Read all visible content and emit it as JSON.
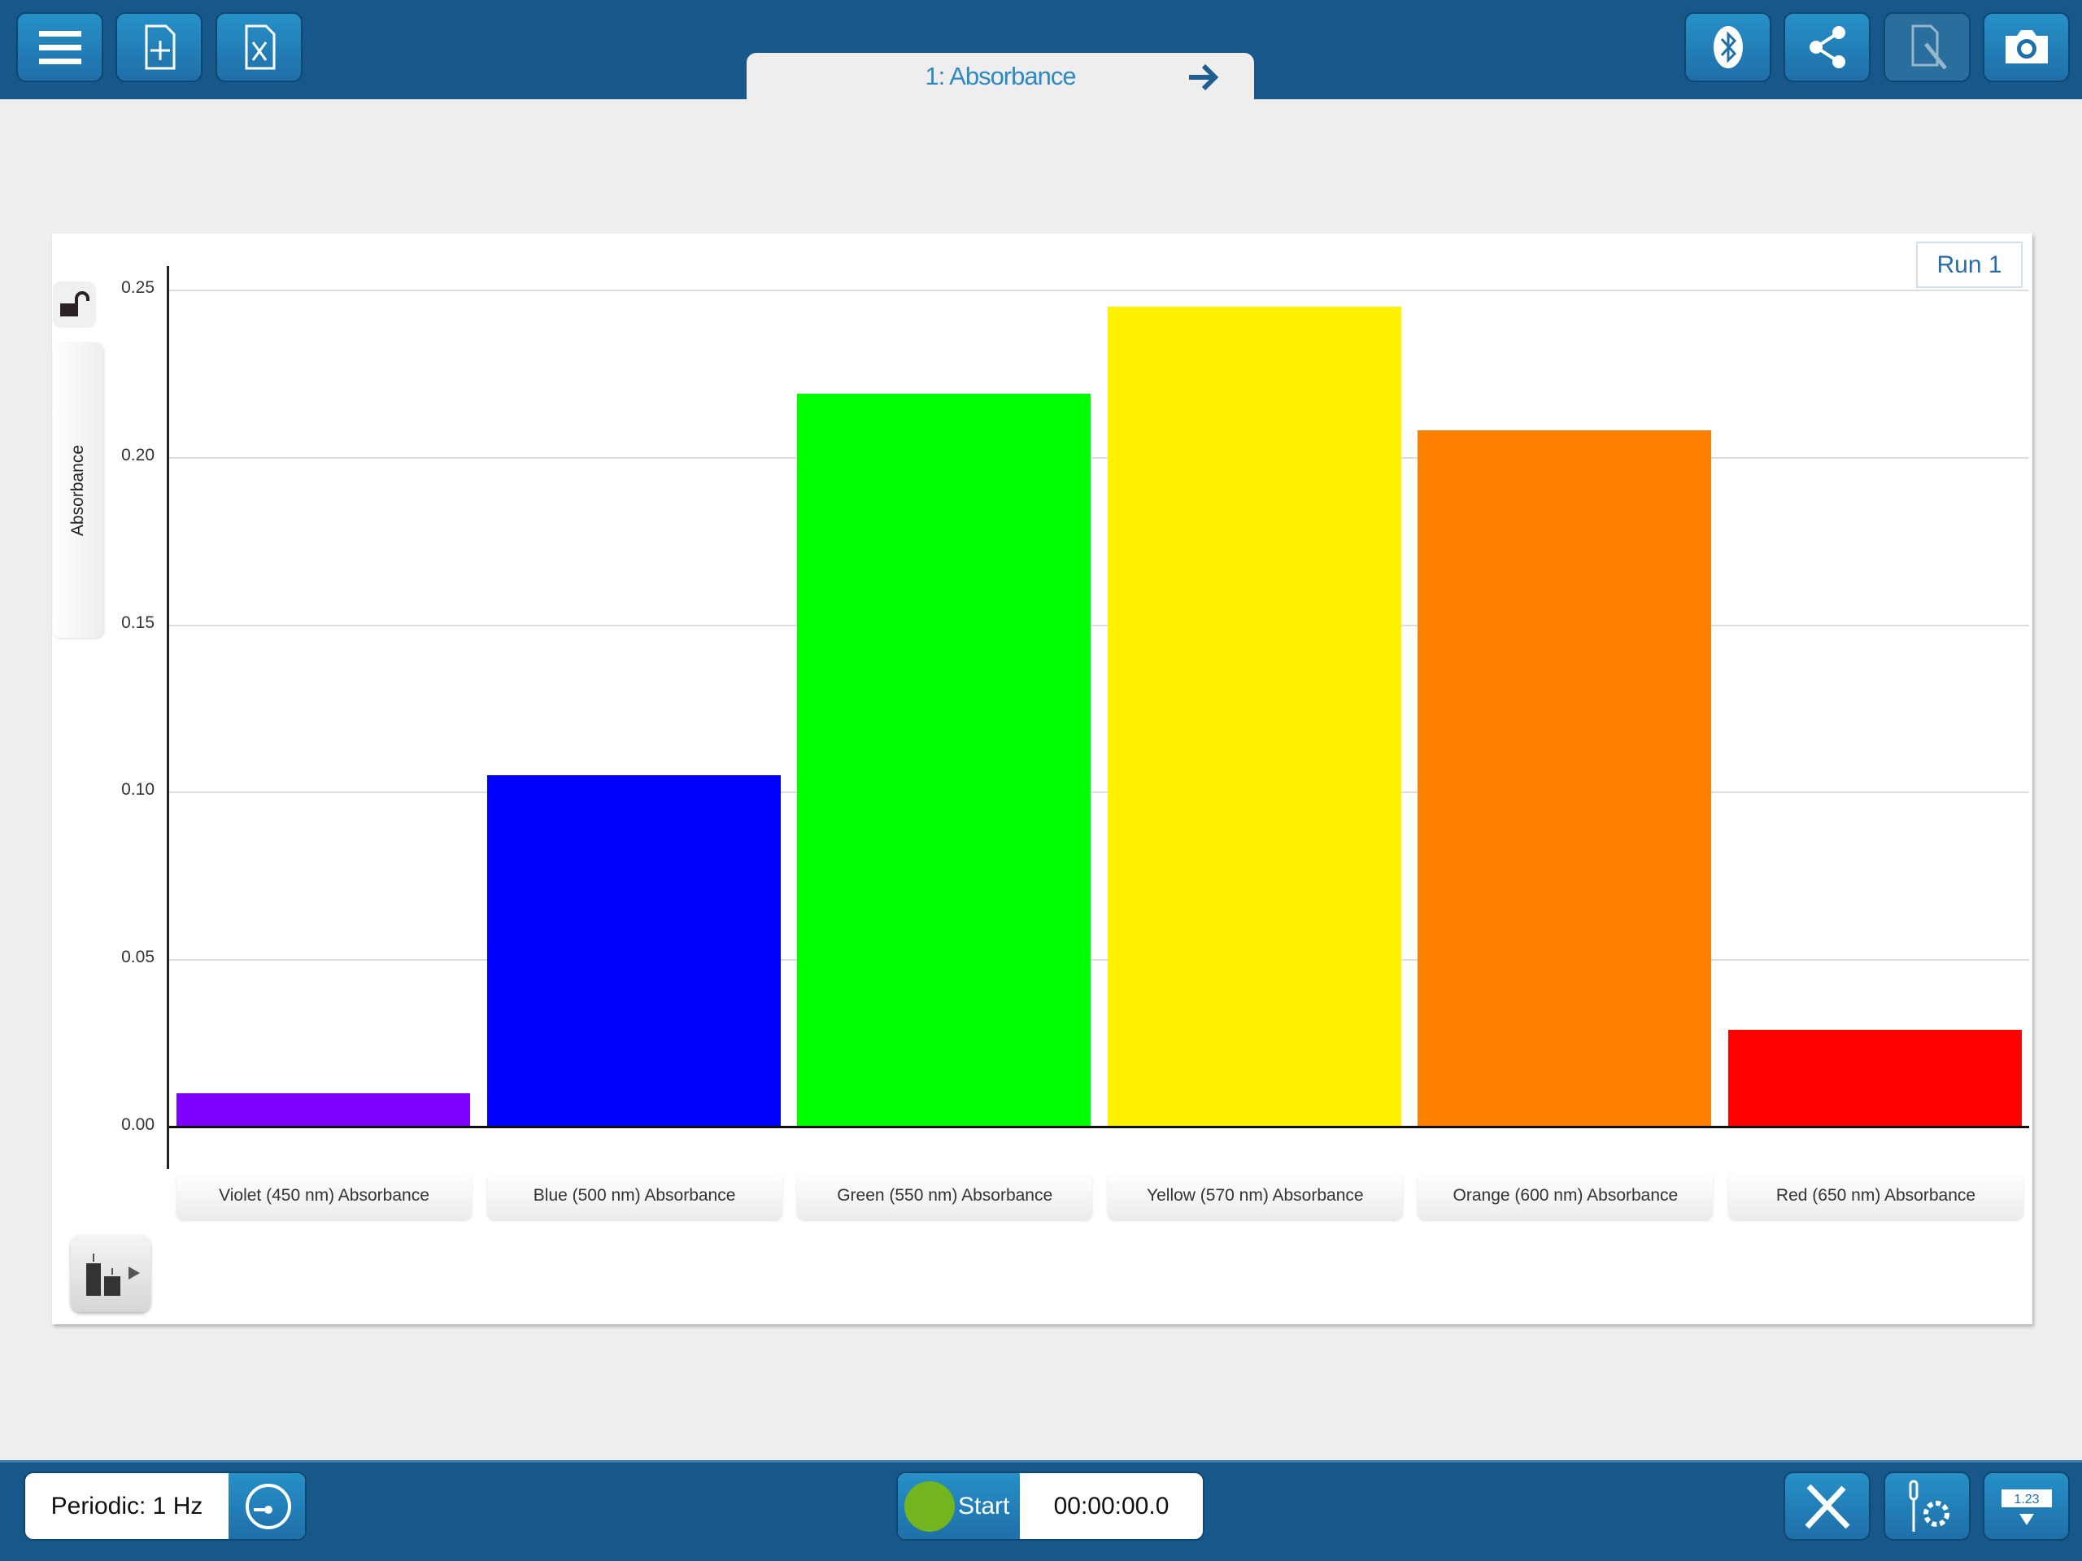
{
  "toolbar": {
    "left_icons": [
      "menu-icon",
      "new-file-icon",
      "excel-file-icon"
    ],
    "right_icons": [
      "bluetooth-icon",
      "share-icon",
      "annotate-icon",
      "camera-icon"
    ]
  },
  "tab": {
    "label": "1: Absorbance",
    "arrow": "arrow-right-icon"
  },
  "run_label": "Run 1",
  "chart_data": {
    "type": "bar",
    "ylabel": "Absorbance",
    "ylim": [
      0,
      0.25
    ],
    "yticks": [
      "0.00",
      "0.05",
      "0.10",
      "0.15",
      "0.20",
      "0.25"
    ],
    "grid": true,
    "categories": [
      "Violet (450 nm) Absorbance",
      "Blue (500 nm) Absorbance",
      "Green (550 nm) Absorbance",
      "Yellow (570 nm) Absorbance",
      "Orange (600 nm) Absorbance",
      "Red (650 nm) Absorbance"
    ],
    "values": [
      0.01,
      0.105,
      0.219,
      0.245,
      0.208,
      0.029
    ],
    "colors": [
      "#8000ff",
      "#0000ff",
      "#00ff00",
      "#fff200",
      "#ff8000",
      "#ff0000"
    ]
  },
  "bottom": {
    "sampling": "Periodic: 1 Hz",
    "start_label": "Start",
    "timer": "00:00:00.0",
    "meter_label": "1.23",
    "right_icons": [
      "tools-icon",
      "sensor-settings-icon",
      "meter-icon"
    ]
  }
}
